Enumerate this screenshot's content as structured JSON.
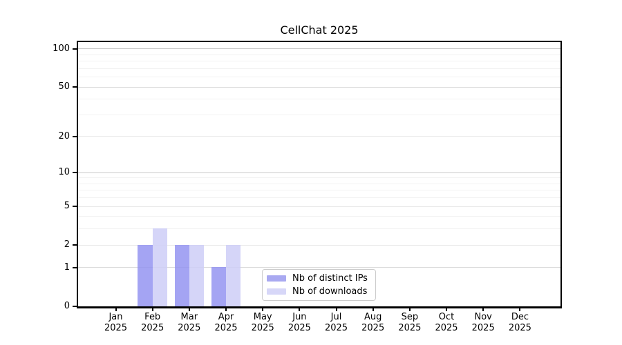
{
  "title": "CellChat 2025",
  "chart_data": {
    "type": "bar",
    "title": "CellChat 2025",
    "categories": [
      "Jan 2025",
      "Feb 2025",
      "Mar 2025",
      "Apr 2025",
      "May 2025",
      "Jun 2025",
      "Jul 2025",
      "Aug 2025",
      "Sep 2025",
      "Oct 2025",
      "Nov 2025",
      "Dec 2025"
    ],
    "series": [
      {
        "name": "Nb of distinct IPs",
        "color": "rgba(146,146,241,0.83)",
        "legend_color": "#a9a9f1",
        "values": [
          0,
          2,
          2,
          1,
          0,
          0,
          0,
          0,
          0,
          0,
          0,
          0
        ]
      },
      {
        "name": "Nb of downloads",
        "color": "rgba(206,206,247,0.85)",
        "legend_color": "#d7d7f8",
        "values": [
          0,
          3,
          2,
          2,
          0,
          0,
          0,
          0,
          0,
          0,
          0,
          0
        ]
      }
    ],
    "y_scale": "log10(1+x)",
    "y_ticks": [
      0,
      1,
      2,
      5,
      10,
      20,
      50,
      100
    ],
    "ylim": [
      0,
      112
    ],
    "gridlines": {
      "strong": {
        "color": "#c9c9c9",
        "values": [
          10,
          100
        ]
      },
      "medium": {
        "color": "#dadada",
        "values": [
          1,
          50
        ]
      },
      "light": {
        "color": "#e9e9e9",
        "values": [
          2,
          5,
          20
        ]
      },
      "minor": {
        "color": "#f2f2f2",
        "values": [
          3,
          4,
          6,
          7,
          8,
          9,
          30,
          40,
          60,
          70,
          80,
          90
        ]
      }
    },
    "legend_position": "inside lower center",
    "grid": true
  }
}
